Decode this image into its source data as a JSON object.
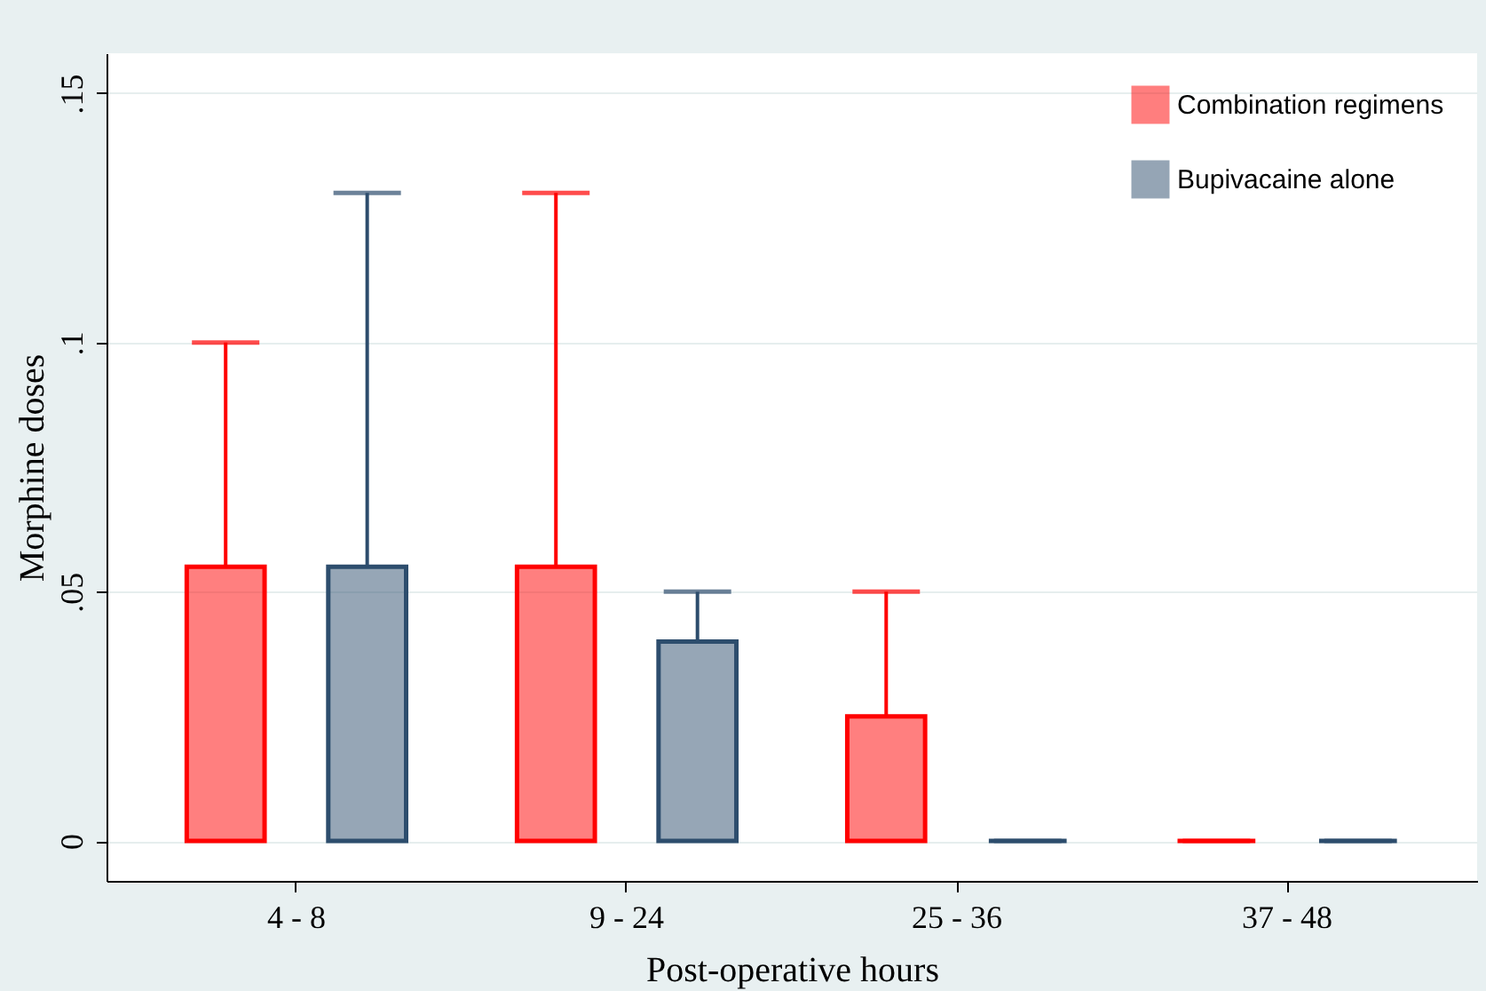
{
  "chart_data": {
    "type": "box",
    "xlabel": "Post-operative hours",
    "ylabel": "Morphine doses",
    "categories": [
      "4 - 8",
      "9 - 24",
      "25 - 36",
      "37 - 48"
    ],
    "series": [
      {
        "name": "Combination regimens",
        "color": "#ff0000",
        "boxes": [
          {
            "low": 0,
            "q1": 0,
            "median": 0,
            "q3": 0.055,
            "high": 0.1
          },
          {
            "low": 0,
            "q1": 0,
            "median": 0,
            "q3": 0.055,
            "high": 0.13
          },
          {
            "low": 0,
            "q1": 0,
            "median": 0,
            "q3": 0.025,
            "high": 0.05
          },
          {
            "low": 0,
            "q1": 0,
            "median": 0,
            "q3": 0,
            "high": 0
          }
        ]
      },
      {
        "name": "Bupivacaine alone",
        "color": "#2d4d6d",
        "boxes": [
          {
            "low": 0,
            "q1": 0,
            "median": 0,
            "q3": 0.055,
            "high": 0.13
          },
          {
            "low": 0,
            "q1": 0,
            "median": 0,
            "q3": 0.04,
            "high": 0.05
          },
          {
            "low": 0,
            "q1": 0,
            "median": 0,
            "q3": 0,
            "high": 0
          },
          {
            "low": 0,
            "q1": 0,
            "median": 0,
            "q3": 0,
            "high": 0
          }
        ]
      }
    ],
    "ylim": [
      -0.008,
      0.158
    ],
    "yticks": [
      0,
      {
        "value": 0.05,
        "label": ".05"
      },
      {
        "value": 0.1,
        "label": ".1"
      },
      {
        "value": 0.15,
        "label": ".15"
      }
    ],
    "grid": "y",
    "legend": "top right"
  }
}
